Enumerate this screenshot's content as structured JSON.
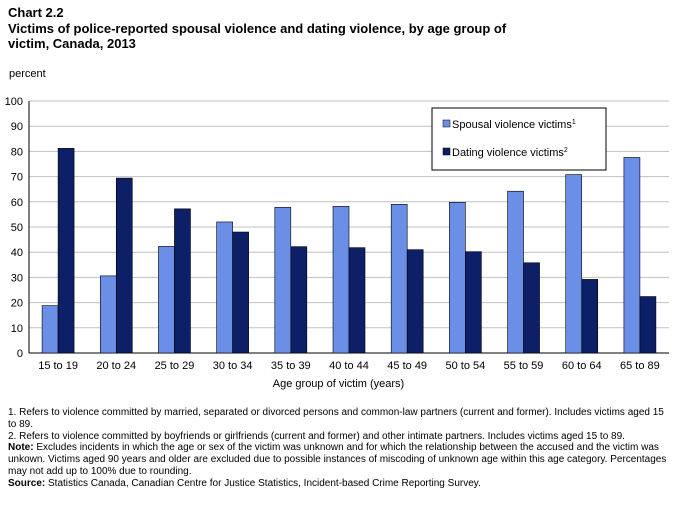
{
  "header": {
    "chart_number": "Chart 2.2",
    "title": "Victims of police-reported spousal violence and dating violence, by age group of victim, Canada, 2013"
  },
  "chart_data": {
    "type": "bar",
    "title": "Victims of police-reported spousal violence and dating violence, by age group of victim, Canada, 2013",
    "ylabel": "percent",
    "xlabel": "Age group of victim (years)",
    "ylim": [
      0,
      100
    ],
    "yticks": [
      0,
      10,
      20,
      30,
      40,
      50,
      60,
      70,
      80,
      90,
      100
    ],
    "grid": true,
    "legend_position": "top-right",
    "categories": [
      "15 to 19",
      "20 to 24",
      "25 to 29",
      "30 to 34",
      "35 to 39",
      "40 to 44",
      "45 to 49",
      "50 to 54",
      "55 to 59",
      "60 to 64",
      "65 to 89"
    ],
    "series": [
      {
        "name": "Spousal violence victims",
        "sup": "1",
        "color": "#6b8ee6",
        "values": [
          18.8,
          30.6,
          42.3,
          52,
          57.8,
          58.2,
          59,
          59.8,
          64.2,
          70.8,
          77.6
        ]
      },
      {
        "name": "Dating violence victims",
        "sup": "2",
        "color": "#0d1f66",
        "values": [
          81.2,
          69.4,
          57.2,
          48,
          42.2,
          41.8,
          41,
          40.2,
          35.8,
          29.2,
          22.4
        ]
      }
    ]
  },
  "footnotes": {
    "note1": "1. Refers to violence committed by married, separated or divorced persons and common-law partners (current and former). Includes victims aged 15 to 89.",
    "note2": "2. Refers to violence committed by boyfriends or girlfriends (current and former) and other intimate partners. Includes victims aged 15 to 89.",
    "note_label": "Note:",
    "note_text": " Excludes incidents in which the age or sex of the victim was unknown and for which the relationship between the accused and the victim was unkown. Victims aged 90 years and older are excluded due to possible instances of miscoding of unknown age within this age category. Percentages may not add up to 100% due to rounding.",
    "source_label": "Source:",
    "source_text": " Statistics Canada, Canadian Centre for Justice Statistics, Incident-based Crime Reporting Survey."
  }
}
